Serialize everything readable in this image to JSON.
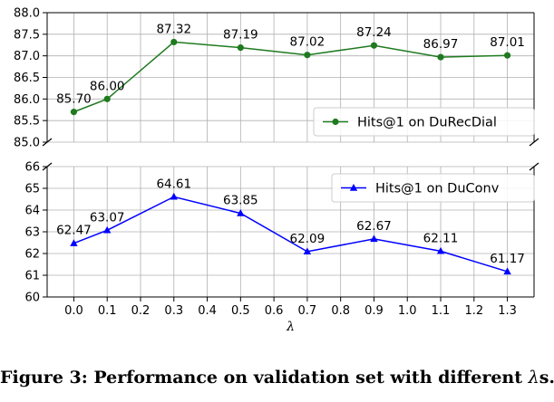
{
  "chart_data": [
    {
      "type": "line",
      "x": [
        0.0,
        0.1,
        0.3,
        0.5,
        0.7,
        0.9,
        1.1,
        1.3
      ],
      "series": [
        {
          "name": "Hits@1 on DuRecDial",
          "values": [
            85.7,
            86.0,
            87.32,
            87.19,
            87.02,
            87.24,
            86.97,
            87.01
          ],
          "labels": [
            "85.70",
            "86.00",
            "87.32",
            "87.19",
            "87.02",
            "87.24",
            "86.97",
            "87.01"
          ],
          "color": "#1f7a1f",
          "marker": "circle"
        }
      ],
      "ylim": [
        85.0,
        88.0
      ],
      "yticks": [
        "85.0",
        "85.5",
        "86.0",
        "86.5",
        "87.0",
        "87.5",
        "88.0"
      ],
      "legend_position": "lower-right",
      "grid": true
    },
    {
      "type": "line",
      "x": [
        0.0,
        0.1,
        0.3,
        0.5,
        0.7,
        0.9,
        1.1,
        1.3
      ],
      "series": [
        {
          "name": "Hits@1 on DuConv",
          "values": [
            62.47,
            63.07,
            64.61,
            63.85,
            62.09,
            62.67,
            62.11,
            61.17
          ],
          "labels": [
            "62.47",
            "63.07",
            "64.61",
            "63.85",
            "62.09",
            "62.67",
            "62.11",
            "61.17"
          ],
          "color": "#0000ff",
          "marker": "triangle"
        }
      ],
      "ylim": [
        60,
        66
      ],
      "yticks": [
        "60",
        "61",
        "62",
        "63",
        "64",
        "65",
        "66"
      ],
      "xticks": [
        "0.0",
        "0.1",
        "0.2",
        "0.3",
        "0.4",
        "0.5",
        "0.6",
        "0.7",
        "0.8",
        "0.9",
        "1.0",
        "1.1",
        "1.2",
        "1.3"
      ],
      "xlabel": "λ",
      "legend_position": "upper-right",
      "grid": true
    }
  ],
  "caption": {
    "prefix": "Figure 3: Performance on validation set with different ",
    "symbol": "λ",
    "suffix": "s."
  }
}
